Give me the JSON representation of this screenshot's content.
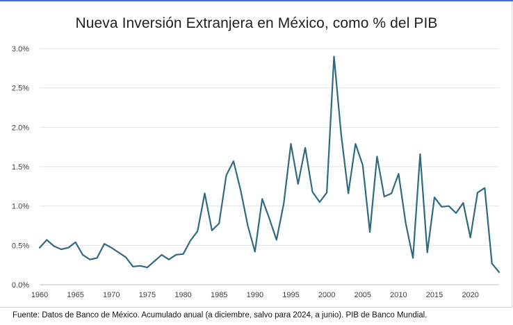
{
  "chart_data": {
    "type": "line",
    "title": "Nueva Inversión Extranjera en México, como % del PIB",
    "xlabel": "",
    "ylabel": "",
    "x_ticks": [
      "1960",
      "1965",
      "1970",
      "1975",
      "1980",
      "1985",
      "1990",
      "1995",
      "2000",
      "2005",
      "2010",
      "2015",
      "2020"
    ],
    "y_ticks": [
      "0.0%",
      "0.5%",
      "1.0%",
      "1.5%",
      "2.0%",
      "2.5%",
      "3.0%"
    ],
    "xlim": [
      1960,
      2024
    ],
    "ylim": [
      0,
      3.0
    ],
    "grid": "horizontal",
    "legend": "none",
    "series": [
      {
        "color": "#2e6a80",
        "x": [
          1960,
          1961,
          1962,
          1963,
          1964,
          1965,
          1966,
          1967,
          1968,
          1969,
          1970,
          1971,
          1972,
          1973,
          1974,
          1975,
          1976,
          1977,
          1978,
          1979,
          1980,
          1981,
          1982,
          1983,
          1984,
          1985,
          1986,
          1987,
          1988,
          1989,
          1990,
          1991,
          1992,
          1993,
          1994,
          1995,
          1996,
          1997,
          1998,
          1999,
          2000,
          2001,
          2002,
          2003,
          2004,
          2005,
          2006,
          2007,
          2008,
          2009,
          2010,
          2011,
          2012,
          2013,
          2014,
          2015,
          2016,
          2017,
          2018,
          2019,
          2020,
          2021,
          2022,
          2023,
          2024
        ],
        "values": [
          0.47,
          0.57,
          0.49,
          0.45,
          0.47,
          0.54,
          0.38,
          0.32,
          0.34,
          0.52,
          0.47,
          0.41,
          0.35,
          0.23,
          0.24,
          0.22,
          0.3,
          0.38,
          0.32,
          0.38,
          0.39,
          0.56,
          0.68,
          1.16,
          0.69,
          0.78,
          1.39,
          1.57,
          1.2,
          0.75,
          0.42,
          1.09,
          0.84,
          0.57,
          1.03,
          1.79,
          1.28,
          1.74,
          1.18,
          1.05,
          1.17,
          2.9,
          1.91,
          1.16,
          1.79,
          1.52,
          0.67,
          1.63,
          1.12,
          1.16,
          1.41,
          0.78,
          0.34,
          1.66,
          0.41,
          1.11,
          0.99,
          1.0,
          0.91,
          1.04,
          0.6,
          1.17,
          1.23,
          0.27,
          0.16
        ]
      }
    ]
  },
  "source_note": "Fuente: Datos de Banco de México. Acumulado anual (a diciembre, salvo para 2024, a junio). PIB de Banco Mundial."
}
